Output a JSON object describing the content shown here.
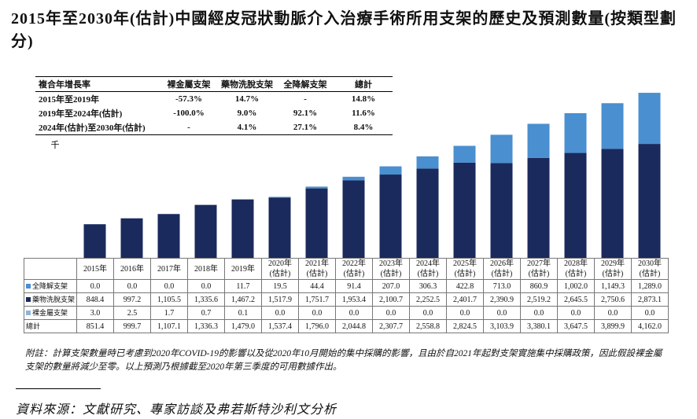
{
  "title": "2015年至2030年(估計)中國經皮冠狀動脈介入治療手術所用支架的歷史及預測數量(按類型劃分)",
  "cagr_table": {
    "headers": [
      "複合年增長率",
      "裸金屬支架",
      "藥物洗脫支架",
      "全降解支架",
      "總計"
    ],
    "rows": [
      [
        "2015年至2019年",
        "-57.3%",
        "14.7%",
        "-",
        "14.8%"
      ],
      [
        "2019年至2024年(估計)",
        "-100.0%",
        "9.0%",
        "92.1%",
        "11.6%"
      ],
      [
        "2024年(估計)至2030年(估計)",
        "-",
        "4.1%",
        "27.1%",
        "8.4%"
      ]
    ]
  },
  "chart_data": {
    "type": "stacked_bar",
    "y_label": "千",
    "ylim": [
      0,
      4500
    ],
    "categories": [
      "2015年",
      "2016年",
      "2017年",
      "2018年",
      "2019年",
      "2020年\n(估計)",
      "2021年\n(估計)",
      "2022年\n(估計)",
      "2023年\n(估計)",
      "2024年\n(估計)",
      "2025年\n(估計)",
      "2026年\n(估計)",
      "2027年\n(估計)",
      "2028年\n(估計)",
      "2029年\n(估計)",
      "2030年\n(估計)"
    ],
    "series": [
      {
        "name": "全降解支架",
        "color": "#4a8fd0",
        "values": [
          0,
          0,
          0,
          0,
          11.7,
          19.5,
          44.4,
          91.4,
          207,
          306.3,
          422.8,
          713,
          860.9,
          1002,
          1149.3,
          1289
        ],
        "value_labels": [
          "0.0",
          "0.0",
          "0.0",
          "0.0",
          "11.7",
          "19.5",
          "44.4",
          "91.4",
          "207.0",
          "306.3",
          "422.8",
          "713.0",
          "860.9",
          "1,002.0",
          "1,149.3",
          "1,289.0"
        ]
      },
      {
        "name": "藥物洗脫支架",
        "color": "#1b2a5c",
        "values": [
          848.4,
          997.2,
          1105.5,
          1335.6,
          1467.2,
          1517.9,
          1751.7,
          1953.4,
          2100.7,
          2252.5,
          2401.7,
          2390.9,
          2519.2,
          2645.5,
          2750.6,
          2873.1
        ],
        "value_labels": [
          "848.4",
          "997.2",
          "1,105.5",
          "1,335.6",
          "1,467.2",
          "1,517.9",
          "1,751.7",
          "1,953.4",
          "2,100.7",
          "2,252.5",
          "2,401.7",
          "2,390.9",
          "2,519.2",
          "2,645.5",
          "2,750.6",
          "2,873.1"
        ]
      },
      {
        "name": "裸金屬支架",
        "color": "#8fb4dc",
        "values": [
          3,
          2.5,
          1.7,
          0.7,
          0.1,
          0,
          0,
          0,
          0,
          0,
          0,
          0,
          0,
          0,
          0,
          0
        ],
        "value_labels": [
          "3.0",
          "2.5",
          "1.7",
          "0.7",
          "0.1",
          "0.0",
          "0.0",
          "0.0",
          "0.0",
          "0.0",
          "0.0",
          "0.0",
          "0.0",
          "0.0",
          "0.0",
          "0.0"
        ]
      }
    ],
    "totals": {
      "name": "總計",
      "values": [
        851.4,
        999.7,
        1107.1,
        1336.3,
        1479,
        1537.4,
        1796,
        2044.8,
        2307.7,
        2558.8,
        2824.5,
        3103.9,
        3380.1,
        3647.5,
        3899.9,
        4162
      ],
      "value_labels": [
        "851.4",
        "999.7",
        "1,107.1",
        "1,336.3",
        "1,479.0",
        "1,537.4",
        "1,796.0",
        "2,044.8",
        "2,307.7",
        "2,558.8",
        "2,824.5",
        "3,103.9",
        "3,380.1",
        "3,647.5",
        "3,899.9",
        "4,162.0"
      ]
    }
  },
  "footnote": "附註：計算支架數量時已考慮到2020年COVID-19的影響以及從2020年10月開始的集中採購的影響，且由於自2021年起對支架實施集中採購政策，因此假設裸金屬支架的數量將減少至零。以上預測乃根據截至2020年第三季度的可用數據作出。",
  "source": "資料來源：文獻研究、專家訪談及弗若斯特沙利文分析"
}
